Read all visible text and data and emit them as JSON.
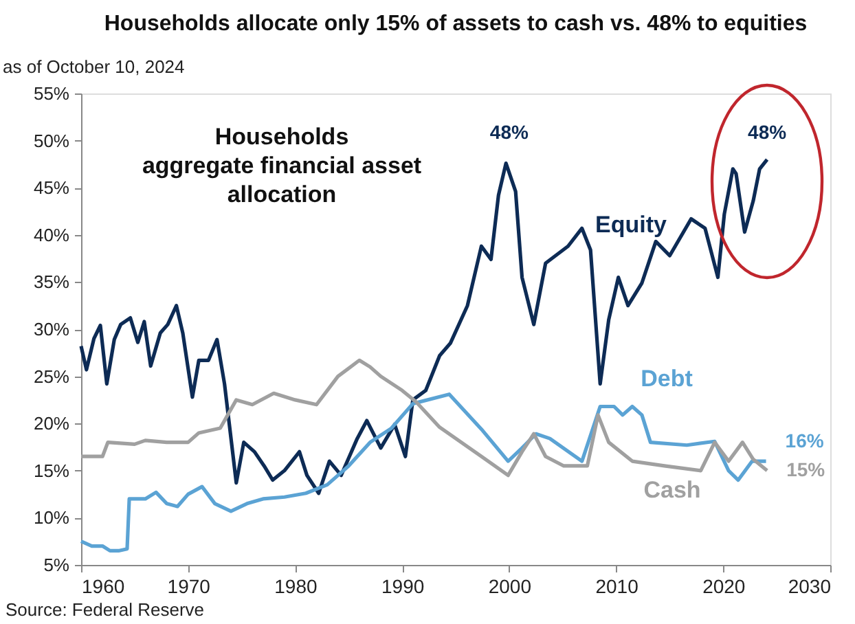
{
  "chart_data": {
    "type": "line",
    "title": "Households allocate only 15% of assets to cash vs. 48% to equities",
    "subtitle": "as of October 10, 2024",
    "series": [
      {
        "name": "Equity",
        "color": "#0d2b55",
        "x": [
          1960,
          1960.5,
          1961.2,
          1961.8,
          1962.4,
          1963.1,
          1963.7,
          1964.6,
          1965.3,
          1965.9,
          1966.5,
          1967.4,
          1968.1,
          1968.9,
          1969.5,
          1970.4,
          1971,
          1971.9,
          1972.7,
          1973.4,
          1974.5,
          1975.2,
          1976.2,
          1977.1,
          1977.9,
          1979,
          1980.4,
          1981.1,
          1982.2,
          1983.2,
          1984.3,
          1985.8,
          1986.7,
          1988,
          1989.3,
          1990.3,
          1991,
          1992.2,
          1993.5,
          1994.5,
          1996.1,
          1997.4,
          1998.3,
          1999,
          1999.7,
          2000.6,
          2001.2,
          2002.3,
          2003.4,
          2005.5,
          2006.8,
          2007.6,
          2008.5,
          2009.3,
          2010.2,
          2011.1,
          2012.4,
          2013.7,
          2015,
          2017,
          2018.3,
          2019.5,
          2020.1,
          2020.9,
          2021.2,
          2022,
          2022.8,
          2023.4,
          2024.1
        ],
        "values": [
          28.2,
          25.7,
          29,
          30.4,
          24.2,
          28.9,
          30.5,
          31.2,
          28.6,
          30.8,
          26.1,
          29.6,
          30.5,
          32.5,
          29.6,
          22.8,
          26.7,
          26.7,
          28.9,
          24.2,
          13.7,
          18,
          17,
          15.5,
          14,
          15,
          17,
          14.5,
          12.6,
          16,
          14.5,
          18.4,
          20.3,
          17.4,
          19.9,
          16.5,
          22.5,
          23.5,
          27.2,
          28.5,
          32.5,
          38.8,
          37.4,
          44.2,
          47.6,
          44.6,
          35.5,
          30.5,
          37,
          38.8,
          40.7,
          38.4,
          24.2,
          31,
          35.5,
          32.5,
          34.9,
          39.3,
          37.8,
          41.7,
          40.7,
          35.5,
          42.2,
          47,
          46.5,
          40.3,
          43.6,
          47,
          48
        ]
      },
      {
        "name": "Debt",
        "color": "#5ba3d4",
        "x": [
          1960,
          1961,
          1962,
          1962.7,
          1963.5,
          1964.3,
          1964.5,
          1966,
          1967,
          1968,
          1969,
          1970,
          1971.3,
          1972.5,
          1974,
          1975.5,
          1977,
          1979,
          1981,
          1983,
          1985,
          1987,
          1989,
          1991,
          1994.4,
          1997.4,
          1999.9,
          2001.2,
          2002.5,
          2003.8,
          2006.8,
          2008.5,
          2009.8,
          2010.6,
          2011.5,
          2012.4,
          2013.2,
          2016.6,
          2019.2,
          2020.5,
          2021.4,
          2022.7,
          2024
        ],
        "values": [
          7.5,
          7,
          7,
          6.5,
          6.5,
          6.7,
          12,
          12,
          12.7,
          11.5,
          11.2,
          12.5,
          13.3,
          11.5,
          10.7,
          11.5,
          12,
          12.2,
          12.6,
          13.5,
          15.5,
          18,
          19.5,
          22.1,
          23.1,
          19.4,
          16,
          17.4,
          18.9,
          18.4,
          16,
          21.8,
          21.8,
          20.9,
          21.8,
          20.9,
          18,
          17.7,
          18.1,
          15,
          14,
          16,
          16
        ]
      },
      {
        "name": "Cash",
        "color": "#a0a0a0",
        "x": [
          1960,
          1962,
          1962.5,
          1965,
          1966,
          1968,
          1970,
          1971,
          1973,
          1974.5,
          1976,
          1978,
          1980,
          1982,
          1984,
          1986,
          1987,
          1988,
          1990,
          1991.3,
          1993.5,
          1997.4,
          1999.9,
          2001.2,
          2002.3,
          2003.4,
          2005.1,
          2007.3,
          2008.3,
          2009.3,
          2011.5,
          2014.5,
          2017.9,
          2019.2,
          2020.5,
          2021.8,
          2022.8,
          2024.1
        ],
        "values": [
          16.5,
          16.5,
          18,
          17.8,
          18.2,
          18,
          18,
          19,
          19.5,
          22.5,
          22,
          23.2,
          22.5,
          22,
          25,
          26.7,
          26,
          25,
          23.5,
          22.3,
          19.6,
          16.5,
          14.5,
          17,
          18.9,
          16.5,
          15.5,
          15.5,
          20.9,
          18,
          16,
          15.5,
          15,
          18,
          16,
          18,
          16.2,
          15
        ]
      }
    ],
    "xlim": [
      1960,
      2030
    ],
    "xticks": [
      1960,
      1970,
      1980,
      1990,
      2000,
      2010,
      2020,
      2030
    ],
    "ylim": [
      5,
      55
    ],
    "yticks": [
      {
        "value": 5,
        "label": "5%"
      },
      {
        "value": 10,
        "label": "10%"
      },
      {
        "value": 15,
        "label": "15%"
      },
      {
        "value": 20,
        "label": "20%"
      },
      {
        "value": 25,
        "label": "25%"
      },
      {
        "value": 30,
        "label": "30%"
      },
      {
        "value": 35,
        "label": "35%"
      },
      {
        "value": 40,
        "label": "40%"
      },
      {
        "value": 45,
        "label": "45%"
      },
      {
        "value": 50,
        "label": "50%"
      },
      {
        "value": 55,
        "label": "55%"
      }
    ],
    "annotations": [
      {
        "text": "48%",
        "x": 2000,
        "y": 48
      },
      {
        "text": "48%",
        "x": 2024.1,
        "y": 48
      },
      {
        "text": "16%",
        "x": 2024,
        "y": 16
      },
      {
        "text": "15%",
        "x": 2024.1,
        "y": 15
      },
      "Households\naggregate financial asset\nallocation",
      "Source: Federal Reserve"
    ],
    "grid": false,
    "legend": false,
    "line_style": "solid",
    "marker": "none"
  }
}
